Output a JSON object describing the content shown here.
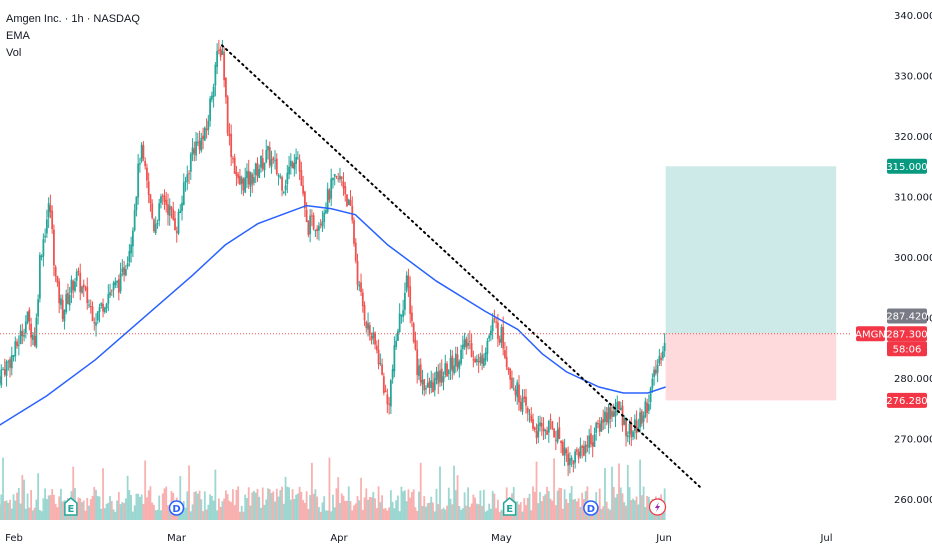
{
  "header": {
    "title": "Amgen Inc. · 1h · NASDAQ",
    "indicator_1": "EMA",
    "indicator_2": "Vol"
  },
  "colors": {
    "up": "#26a69a",
    "down": "#ef5350",
    "ema": "#2962ff",
    "trendline": "#000000",
    "profit_zone": "#b2dfdb",
    "loss_zone": "#ffcdd2",
    "price_line": "#ef5350"
  },
  "price_tags": {
    "target": "315.000",
    "entry": "287.420",
    "symbol": "AMGN",
    "last": "287.300",
    "countdown": "58:06",
    "stop": "276.280"
  },
  "event_markers": [
    {
      "letter": "E",
      "month_pos": 0.35,
      "type": "earnings"
    },
    {
      "letter": "D",
      "month_pos": 1.0,
      "type": "dividend"
    },
    {
      "letter": "E",
      "month_pos": 3.05,
      "type": "earnings"
    },
    {
      "letter": "D",
      "month_pos": 3.55,
      "type": "dividend"
    }
  ],
  "chart_data": {
    "type": "candlestick",
    "symbol": "AMGN",
    "y_ticks": [
      260,
      270,
      280,
      290,
      300,
      310,
      320,
      330,
      340
    ],
    "y_tick_labels": [
      "260.000",
      "270.000",
      "280.000",
      "290.000",
      "300.000",
      "310.000",
      "320.000",
      "330.000",
      "340.000"
    ],
    "ylim": [
      256.5,
      342.5
    ],
    "x_tick_labels": [
      "Feb",
      "Mar",
      "Apr",
      "May",
      "Jun",
      "Jul"
    ],
    "x_tick_month_index": [
      0,
      1,
      2,
      3,
      4,
      5
    ],
    "price_path": [
      [
        -0.1,
        280.0
      ],
      [
        0.0,
        284.0
      ],
      [
        0.08,
        290.0
      ],
      [
        0.13,
        286.0
      ],
      [
        0.16,
        300.0
      ],
      [
        0.22,
        309.0
      ],
      [
        0.26,
        295.0
      ],
      [
        0.3,
        291.0
      ],
      [
        0.38,
        297.0
      ],
      [
        0.5,
        290.0
      ],
      [
        0.58,
        294.0
      ],
      [
        0.66,
        296.0
      ],
      [
        0.72,
        303.0
      ],
      [
        0.78,
        318.0
      ],
      [
        0.86,
        305.0
      ],
      [
        0.92,
        310.0
      ],
      [
        1.0,
        305.0
      ],
      [
        1.1,
        318.0
      ],
      [
        1.18,
        320.0
      ],
      [
        1.24,
        332.0
      ],
      [
        1.28,
        335.0
      ],
      [
        1.32,
        320.0
      ],
      [
        1.38,
        312.0
      ],
      [
        1.46,
        313.0
      ],
      [
        1.56,
        317.0
      ],
      [
        1.66,
        312.0
      ],
      [
        1.74,
        318.0
      ],
      [
        1.8,
        305.0
      ],
      [
        1.88,
        306.0
      ],
      [
        1.96,
        312.0
      ],
      [
        2.02,
        313.0
      ],
      [
        2.08,
        306.0
      ],
      [
        2.12,
        295.0
      ],
      [
        2.18,
        288.0
      ],
      [
        2.24,
        284.0
      ],
      [
        2.3,
        275.0
      ],
      [
        2.36,
        288.0
      ],
      [
        2.42,
        296.0
      ],
      [
        2.48,
        282.0
      ],
      [
        2.54,
        278.0
      ],
      [
        2.62,
        280.0
      ],
      [
        2.72,
        283.0
      ],
      [
        2.8,
        286.0
      ],
      [
        2.86,
        282.0
      ],
      [
        2.95,
        289.0
      ],
      [
        3.0,
        287.0
      ],
      [
        3.06,
        280.0
      ],
      [
        3.14,
        275.0
      ],
      [
        3.22,
        271.0
      ],
      [
        3.3,
        272.0
      ],
      [
        3.36,
        270.0
      ],
      [
        3.42,
        266.0
      ],
      [
        3.48,
        268.0
      ],
      [
        3.56,
        270.0
      ],
      [
        3.64,
        274.0
      ],
      [
        3.72,
        275.0
      ],
      [
        3.78,
        271.0
      ],
      [
        3.84,
        272.0
      ],
      [
        3.9,
        276.0
      ],
      [
        3.96,
        282.0
      ],
      [
        4.01,
        287.3
      ]
    ],
    "ema_path": [
      [
        -0.1,
        272.0
      ],
      [
        0.2,
        277.0
      ],
      [
        0.5,
        283.0
      ],
      [
        0.8,
        290.0
      ],
      [
        1.1,
        297.0
      ],
      [
        1.3,
        302.0
      ],
      [
        1.5,
        305.5
      ],
      [
        1.7,
        307.5
      ],
      [
        1.8,
        308.5
      ],
      [
        1.95,
        308.0
      ],
      [
        2.1,
        307.0
      ],
      [
        2.3,
        302.0
      ],
      [
        2.6,
        296.0
      ],
      [
        2.9,
        291.0
      ],
      [
        3.1,
        288.0
      ],
      [
        3.25,
        284.0
      ],
      [
        3.4,
        281.0
      ],
      [
        3.6,
        278.5
      ],
      [
        3.75,
        277.5
      ],
      [
        3.9,
        277.5
      ],
      [
        4.01,
        278.5
      ]
    ],
    "trendline": {
      "start": [
        1.28,
        335.0
      ],
      "end": [
        4.22,
        262.0
      ]
    },
    "position": {
      "entry": 287.42,
      "target": 315.0,
      "stop": 276.28,
      "x_start": 4.01,
      "x_end": 5.06
    },
    "last_price": 287.3
  }
}
